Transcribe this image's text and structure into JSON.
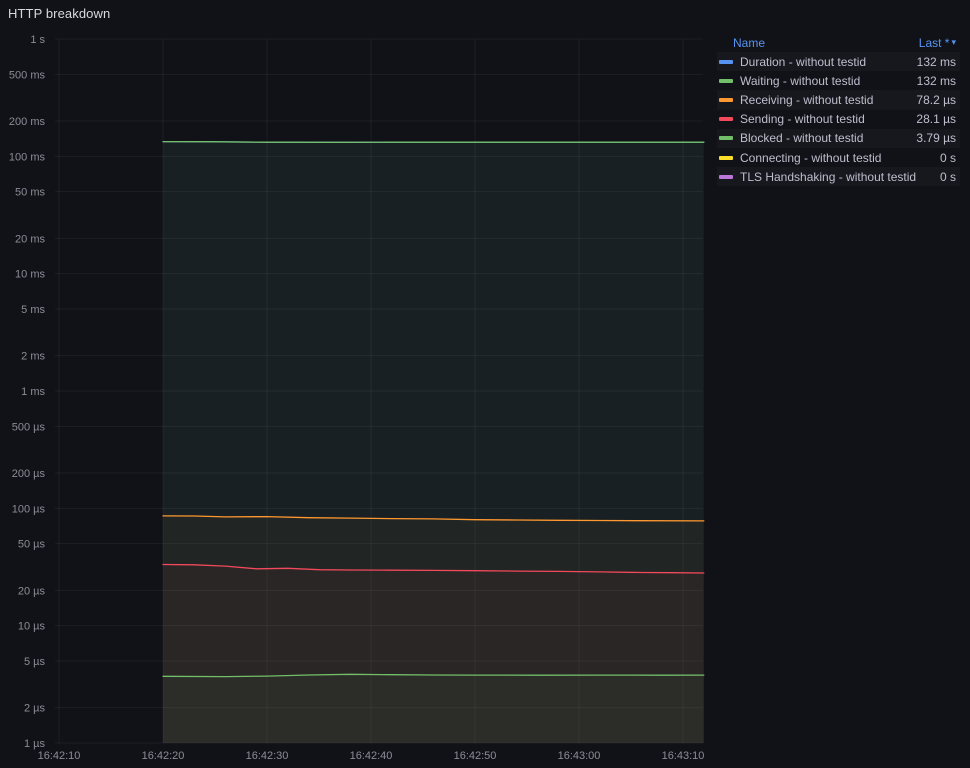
{
  "panel": {
    "title": "HTTP breakdown"
  },
  "legend": {
    "name_header": "Name",
    "last_header": "Last *",
    "sort_icon": "▾",
    "rows": [
      {
        "label": "Duration - without testid",
        "value": "132 ms",
        "color": "#5794F2"
      },
      {
        "label": "Waiting - without testid",
        "value": "132 ms",
        "color": "#73BF69"
      },
      {
        "label": "Receiving - without testid",
        "value": "78.2 µs",
        "color": "#FF9830"
      },
      {
        "label": "Sending - without testid",
        "value": "28.1 µs",
        "color": "#F2495C"
      },
      {
        "label": "Blocked - without testid",
        "value": "3.79 µs",
        "color": "#73BF69"
      },
      {
        "label": "Connecting - without testid",
        "value": "0 s",
        "color": "#FADE2A"
      },
      {
        "label": "TLS Handshaking - without testid",
        "value": "0 s",
        "color": "#B877D9"
      }
    ]
  },
  "chart_data": {
    "type": "line",
    "title": "HTTP breakdown",
    "y_scale": "log",
    "y_unit": "seconds",
    "ylim_seconds": [
      1e-06,
      1
    ],
    "grid": true,
    "legend_position": "right",
    "x_ticks": [
      {
        "label": "16:42:10",
        "s": 0
      },
      {
        "label": "16:42:20",
        "s": 10
      },
      {
        "label": "16:42:30",
        "s": 20
      },
      {
        "label": "16:42:40",
        "s": 30
      },
      {
        "label": "16:42:50",
        "s": 40
      },
      {
        "label": "16:43:00",
        "s": 50
      },
      {
        "label": "16:43:10",
        "s": 60
      }
    ],
    "y_ticks": [
      {
        "label": "1 s",
        "v": 1
      },
      {
        "label": "500 ms",
        "v": 0.5
      },
      {
        "label": "200 ms",
        "v": 0.2
      },
      {
        "label": "100 ms",
        "v": 0.1
      },
      {
        "label": "50 ms",
        "v": 0.05
      },
      {
        "label": "20 ms",
        "v": 0.02
      },
      {
        "label": "10 ms",
        "v": 0.01
      },
      {
        "label": "5 ms",
        "v": 0.005
      },
      {
        "label": "2 ms",
        "v": 0.002
      },
      {
        "label": "1 ms",
        "v": 0.001
      },
      {
        "label": "500 µs",
        "v": 0.0005
      },
      {
        "label": "200 µs",
        "v": 0.0002
      },
      {
        "label": "100 µs",
        "v": 0.0001
      },
      {
        "label": "50 µs",
        "v": 5e-05
      },
      {
        "label": "20 µs",
        "v": 2e-05
      },
      {
        "label": "10 µs",
        "v": 1e-05
      },
      {
        "label": "5 µs",
        "v": 5e-06
      },
      {
        "label": "2 µs",
        "v": 2e-06
      },
      {
        "label": "1 µs",
        "v": 1e-06
      }
    ],
    "series": [
      {
        "name": "Duration - without testid",
        "color": "#5794F2",
        "last": "132 ms",
        "fill_opacity": 0.04,
        "points": [
          [
            10,
            0.1335
          ],
          [
            14,
            0.1332
          ],
          [
            20,
            0.132
          ],
          [
            26,
            0.1318
          ],
          [
            32,
            0.132
          ],
          [
            40,
            0.1319
          ],
          [
            48,
            0.132
          ],
          [
            56,
            0.132
          ],
          [
            62,
            0.132
          ]
        ]
      },
      {
        "name": "Waiting - without testid",
        "color": "#73BF69",
        "last": "132 ms",
        "fill_opacity": 0.06,
        "points": [
          [
            10,
            0.1335
          ],
          [
            14,
            0.1332
          ],
          [
            20,
            0.132
          ],
          [
            26,
            0.1318
          ],
          [
            32,
            0.132
          ],
          [
            40,
            0.1319
          ],
          [
            48,
            0.132
          ],
          [
            56,
            0.132
          ],
          [
            62,
            0.132
          ]
        ]
      },
      {
        "name": "Receiving - without testid",
        "color": "#FF9830",
        "last": "78.2 µs",
        "fill_opacity": 0.045,
        "points": [
          [
            10,
            8.62e-05
          ],
          [
            13,
            8.6e-05
          ],
          [
            16,
            8.45e-05
          ],
          [
            20,
            8.5e-05
          ],
          [
            24,
            8.32e-05
          ],
          [
            28,
            8.25e-05
          ],
          [
            32,
            8.18e-05
          ],
          [
            36,
            8.12e-05
          ],
          [
            40,
            8e-05
          ],
          [
            44,
            7.95e-05
          ],
          [
            48,
            7.9e-05
          ],
          [
            52,
            7.88e-05
          ],
          [
            56,
            7.85e-05
          ],
          [
            62,
            7.82e-05
          ]
        ]
      },
      {
        "name": "Sending - without testid",
        "color": "#F2495C",
        "last": "28.1 µs",
        "fill_opacity": 0.045,
        "points": [
          [
            10,
            3.32e-05
          ],
          [
            13,
            3.3e-05
          ],
          [
            16,
            3.22e-05
          ],
          [
            19,
            3.05e-05
          ],
          [
            22,
            3.08e-05
          ],
          [
            25,
            3e-05
          ],
          [
            28,
            2.98e-05
          ],
          [
            32,
            2.97e-05
          ],
          [
            36,
            2.96e-05
          ],
          [
            40,
            2.94e-05
          ],
          [
            44,
            2.92e-05
          ],
          [
            48,
            2.9e-05
          ],
          [
            52,
            2.87e-05
          ],
          [
            56,
            2.84e-05
          ],
          [
            59,
            2.83e-05
          ],
          [
            62,
            2.81e-05
          ]
        ]
      },
      {
        "name": "Blocked - without testid",
        "color": "#73BF69",
        "last": "3.79 µs",
        "fill_opacity": 0.045,
        "points": [
          [
            10,
            3.7e-06
          ],
          [
            16,
            3.68e-06
          ],
          [
            20,
            3.72e-06
          ],
          [
            24,
            3.8e-06
          ],
          [
            28,
            3.85e-06
          ],
          [
            32,
            3.82e-06
          ],
          [
            36,
            3.8e-06
          ],
          [
            40,
            3.79e-06
          ],
          [
            46,
            3.78e-06
          ],
          [
            52,
            3.79e-06
          ],
          [
            58,
            3.78e-06
          ],
          [
            62,
            3.79e-06
          ]
        ]
      },
      {
        "name": "Connecting - without testid",
        "color": "#FADE2A",
        "last": "0 s",
        "fill_opacity": 0,
        "points": [
          [
            10,
            0
          ],
          [
            62,
            0
          ]
        ]
      },
      {
        "name": "TLS Handshaking - without testid",
        "color": "#B877D9",
        "last": "0 s",
        "fill_opacity": 0,
        "points": [
          [
            10,
            0
          ],
          [
            62,
            0
          ]
        ]
      }
    ]
  }
}
